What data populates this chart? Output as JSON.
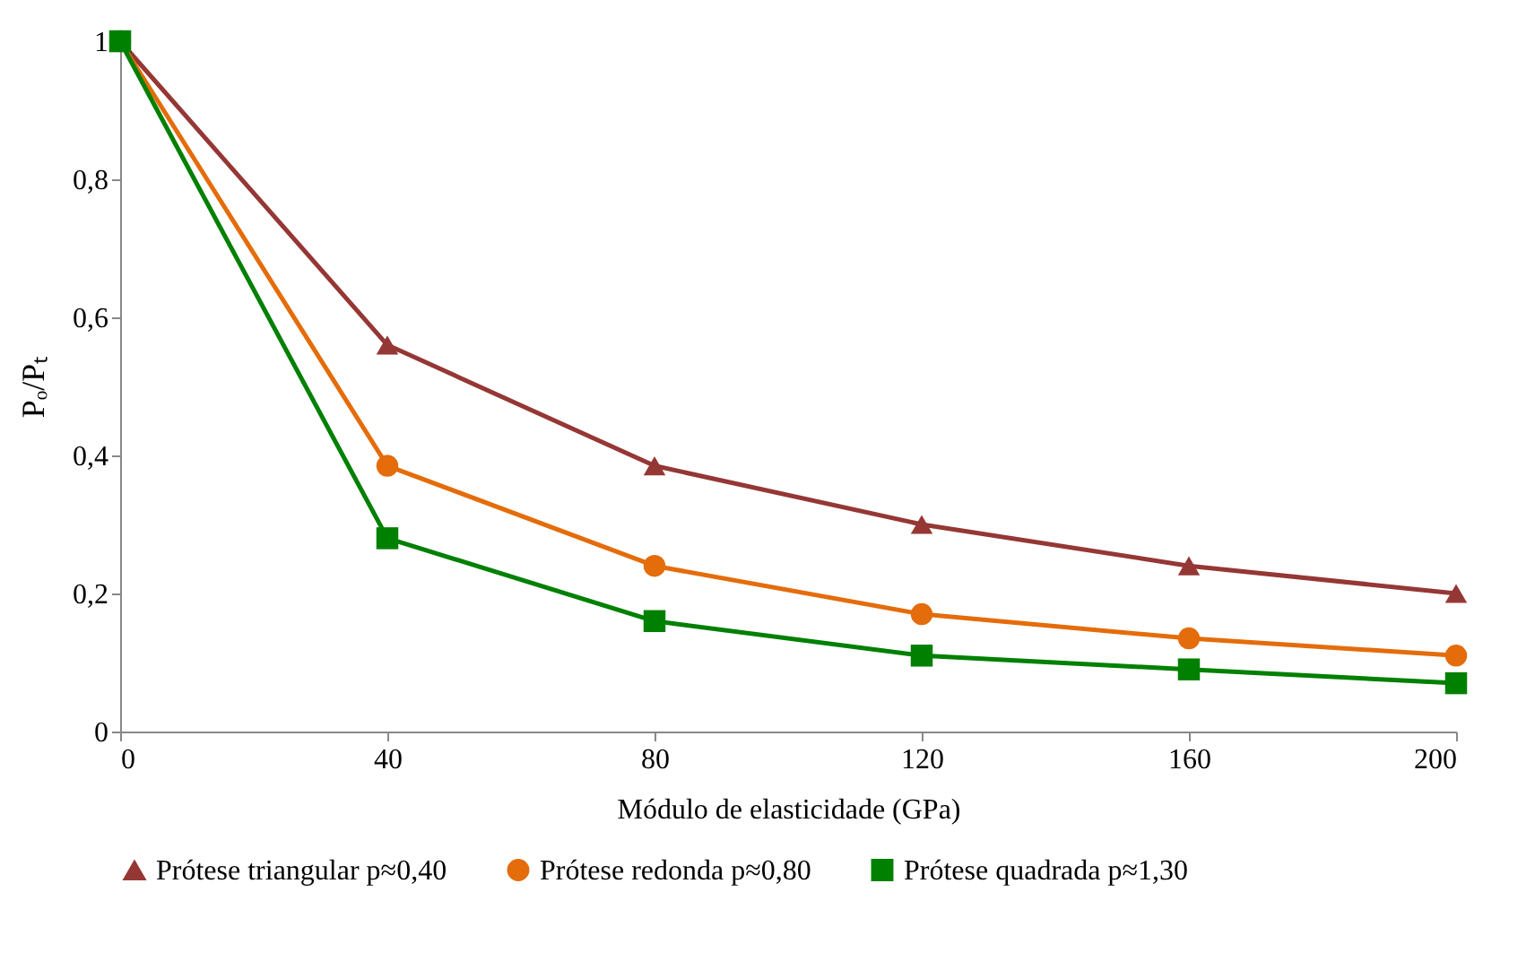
{
  "chart_data": {
    "type": "line",
    "xlabel": "Módulo de elasticidade (GPa)",
    "ylabel": "Pₒ/Pₜ",
    "x": [
      0,
      40,
      80,
      120,
      160,
      200
    ],
    "xlim": [
      0,
      200
    ],
    "xticks": [
      0,
      40,
      80,
      120,
      160,
      200
    ],
    "ylim": [
      0,
      1
    ],
    "yticks": [
      0,
      {
        "value": 0.2,
        "label": "0,2"
      },
      {
        "value": 0.4,
        "label": "0,4"
      },
      {
        "value": 0.6,
        "label": "0,6"
      },
      {
        "value": 0.8,
        "label": "0,8"
      },
      1
    ],
    "grid": false,
    "legend": "bottom",
    "line_style": "solid",
    "series": [
      {
        "name": "Prótese triangular p≈0,40",
        "color": "#953735",
        "marker": "triangle",
        "values": [
          1,
          0.56,
          0.385,
          0.3,
          0.24,
          0.2
        ]
      },
      {
        "name": "Prótese redonda p≈0,80",
        "color": "#e46c0a",
        "marker": "circle",
        "values": [
          1,
          0.385,
          0.24,
          0.17,
          0.135,
          0.11
        ]
      },
      {
        "name": "Prótese quadrada p≈1,30",
        "color": "#008000",
        "marker": "square",
        "values": [
          1,
          0.28,
          0.16,
          0.11,
          0.09,
          0.07
        ]
      }
    ]
  }
}
